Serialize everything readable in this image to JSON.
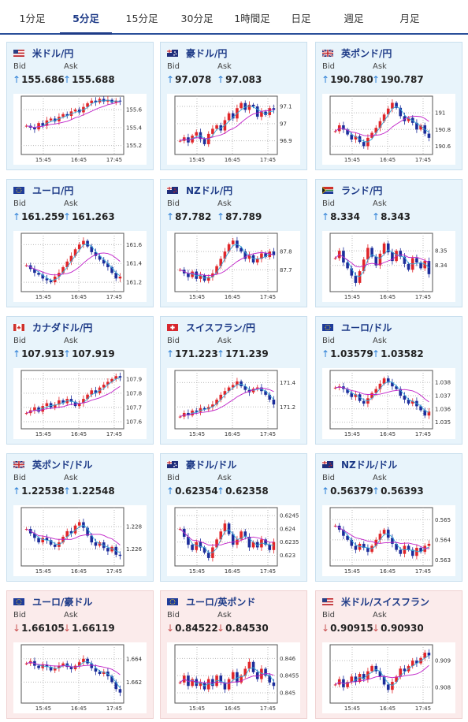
{
  "tabs": [
    {
      "label": "1分足",
      "active": false
    },
    {
      "label": "5分足",
      "active": true
    },
    {
      "label": "15分足",
      "active": false
    },
    {
      "label": "30分足",
      "active": false
    },
    {
      "label": "1時間足",
      "active": false
    },
    {
      "label": "日足",
      "active": false
    },
    {
      "label": "週足",
      "active": false
    },
    {
      "label": "月足",
      "active": false
    }
  ],
  "labels": {
    "bid": "Bid",
    "ask": "Ask"
  },
  "xticks": [
    "15:45",
    "16:45",
    "17:45"
  ],
  "cards": [
    {
      "pair": "米ドル/円",
      "flag": "us-flag-icon",
      "direction": "up",
      "bid": "155.686",
      "ask": "155.688",
      "yticks": [
        "155.6",
        "155.4",
        "155.2"
      ],
      "yrange": [
        155.1,
        155.75
      ],
      "open": 155.42,
      "series": [
        155.42,
        155.4,
        155.38,
        155.45,
        155.42,
        155.48,
        155.5,
        155.47,
        155.52,
        155.55,
        155.53,
        155.58,
        155.6,
        155.57,
        155.63,
        155.67,
        155.7,
        155.68,
        155.72,
        155.69,
        155.71,
        155.68,
        155.7,
        155.69
      ]
    },
    {
      "pair": "豪ドル/円",
      "flag": "au-flag-icon",
      "direction": "up",
      "bid": "97.078",
      "ask": "97.083",
      "yticks": [
        "97.1",
        "97",
        "96.9"
      ],
      "yrange": [
        96.82,
        97.16
      ],
      "open": 96.9,
      "series": [
        96.9,
        96.92,
        96.89,
        96.93,
        96.95,
        96.91,
        96.88,
        96.94,
        96.97,
        96.99,
        96.96,
        97.02,
        97.06,
        97.03,
        97.09,
        97.12,
        97.08,
        97.11,
        97.1,
        97.04,
        97.07,
        97.05,
        97.09,
        97.08
      ]
    },
    {
      "pair": "英ポンド/円",
      "flag": "gb-flag-icon",
      "direction": "up",
      "bid": "190.780",
      "ask": "190.787",
      "yticks": [
        "191",
        "190.8",
        "190.6"
      ],
      "yrange": [
        190.5,
        191.2
      ],
      "open": 190.78,
      "series": [
        190.78,
        190.85,
        190.8,
        190.74,
        190.68,
        190.72,
        190.65,
        190.6,
        190.7,
        190.76,
        190.82,
        190.9,
        190.98,
        191.05,
        191.12,
        191.06,
        190.96,
        190.9,
        190.94,
        190.88,
        190.8,
        190.85,
        190.75,
        190.7
      ]
    },
    {
      "pair": "ユーロ/円",
      "flag": "eu-flag-icon",
      "direction": "up",
      "bid": "161.259",
      "ask": "161.263",
      "yticks": [
        "161.6",
        "161.4",
        "161.2"
      ],
      "yrange": [
        161.1,
        161.72
      ],
      "open": 161.38,
      "series": [
        161.38,
        161.34,
        161.3,
        161.28,
        161.24,
        161.22,
        161.2,
        161.26,
        161.3,
        161.36,
        161.42,
        161.48,
        161.55,
        161.6,
        161.64,
        161.58,
        161.52,
        161.48,
        161.44,
        161.4,
        161.36,
        161.3,
        161.24,
        161.26
      ]
    },
    {
      "pair": "NZドル/円",
      "flag": "nz-flag-icon",
      "direction": "up",
      "bid": "87.782",
      "ask": "87.789",
      "yticks": [
        "87.8",
        "87.7"
      ],
      "yrange": [
        87.58,
        87.9
      ],
      "open": 87.7,
      "series": [
        87.7,
        87.68,
        87.66,
        87.69,
        87.65,
        87.67,
        87.64,
        87.66,
        87.68,
        87.72,
        87.76,
        87.8,
        87.84,
        87.86,
        87.82,
        87.8,
        87.76,
        87.78,
        87.74,
        87.76,
        87.79,
        87.77,
        87.8,
        87.78
      ]
    },
    {
      "pair": "ランド/円",
      "flag": "za-flag-icon",
      "direction": "up",
      "bid": "8.334",
      "ask": "8.343",
      "yticks": [
        "8.35",
        "8.34"
      ],
      "yrange": [
        8.322,
        8.362
      ],
      "open": 8.345,
      "series": [
        8.345,
        8.35,
        8.342,
        8.338,
        8.333,
        8.328,
        8.336,
        8.344,
        8.352,
        8.346,
        8.34,
        8.348,
        8.355,
        8.349,
        8.343,
        8.35,
        8.346,
        8.341,
        8.337,
        8.345,
        8.342,
        8.338,
        8.343,
        8.334
      ]
    },
    {
      "pair": "カナダドル/円",
      "flag": "ca-flag-icon",
      "direction": "up",
      "bid": "107.913",
      "ask": "107.919",
      "yticks": [
        "107.9",
        "107.8",
        "107.7",
        "107.6"
      ],
      "yrange": [
        107.55,
        107.96
      ],
      "open": 107.66,
      "series": [
        107.66,
        107.68,
        107.7,
        107.67,
        107.71,
        107.73,
        107.7,
        107.72,
        107.75,
        107.73,
        107.76,
        107.74,
        107.71,
        107.73,
        107.76,
        107.79,
        107.82,
        107.8,
        107.84,
        107.86,
        107.88,
        107.9,
        107.92,
        107.91
      ]
    },
    {
      "pair": "スイスフラン/円",
      "flag": "ch-flag-icon",
      "direction": "up",
      "bid": "171.223",
      "ask": "171.239",
      "yticks": [
        "171.4",
        "171.2"
      ],
      "yrange": [
        171.02,
        171.5
      ],
      "open": 171.12,
      "series": [
        171.12,
        171.15,
        171.13,
        171.17,
        171.16,
        171.19,
        171.18,
        171.2,
        171.22,
        171.26,
        171.3,
        171.33,
        171.36,
        171.38,
        171.41,
        171.37,
        171.34,
        171.32,
        171.35,
        171.36,
        171.33,
        171.3,
        171.26,
        171.22
      ]
    },
    {
      "pair": "ユーロ/ドル",
      "flag": "eu-flag-icon",
      "direction": "up",
      "bid": "1.03579",
      "ask": "1.03582",
      "yticks": [
        "1.038",
        "1.037",
        "1.036",
        "1.035"
      ],
      "yrange": [
        1.0345,
        1.0389
      ],
      "open": 1.0376,
      "series": [
        1.0376,
        1.0377,
        1.0375,
        1.0372,
        1.0369,
        1.0371,
        1.0366,
        1.0364,
        1.0368,
        1.0372,
        1.0375,
        1.0379,
        1.0383,
        1.038,
        1.0377,
        1.0375,
        1.037,
        1.0367,
        1.0364,
        1.0366,
        1.0362,
        1.0359,
        1.0355,
        1.0358
      ]
    },
    {
      "pair": "英ポンド/ドル",
      "flag": "gb-flag-icon",
      "direction": "up",
      "bid": "1.22538",
      "ask": "1.22548",
      "yticks": [
        "1.228",
        "1.226"
      ],
      "yrange": [
        1.2245,
        1.2297
      ],
      "open": 1.2278,
      "series": [
        1.2278,
        1.2274,
        1.227,
        1.2266,
        1.227,
        1.2268,
        1.2264,
        1.2262,
        1.2266,
        1.2271,
        1.2276,
        1.2274,
        1.2281,
        1.2284,
        1.2279,
        1.2272,
        1.2266,
        1.2263,
        1.2266,
        1.2261,
        1.2258,
        1.2262,
        1.2255,
        1.2254
      ]
    },
    {
      "pair": "豪ドル/ドル",
      "flag": "au-flag-icon",
      "direction": "up",
      "bid": "0.62354",
      "ask": "0.62358",
      "yticks": [
        "0.6245",
        "0.624",
        "0.6235",
        "0.623"
      ],
      "yrange": [
        0.6226,
        0.6248
      ],
      "open": 0.624,
      "series": [
        0.624,
        0.6237,
        0.6234,
        0.6232,
        0.6235,
        0.6233,
        0.6231,
        0.6229,
        0.6233,
        0.6236,
        0.6239,
        0.6242,
        0.6238,
        0.6234,
        0.6236,
        0.6239,
        0.6237,
        0.6233,
        0.6235,
        0.6233,
        0.6236,
        0.6234,
        0.6232,
        0.6235
      ]
    },
    {
      "pair": "NZドル/ドル",
      "flag": "nz-flag-icon",
      "direction": "up",
      "bid": "0.56379",
      "ask": "0.56393",
      "yticks": [
        "0.565",
        "0.564",
        "0.563"
      ],
      "yrange": [
        0.5627,
        0.5656
      ],
      "open": 0.5647,
      "series": [
        0.5647,
        0.5645,
        0.5642,
        0.564,
        0.5637,
        0.5635,
        0.5638,
        0.5636,
        0.5634,
        0.5637,
        0.564,
        0.5643,
        0.5645,
        0.5641,
        0.5638,
        0.5635,
        0.5633,
        0.5637,
        0.5635,
        0.5632,
        0.5636,
        0.5634,
        0.5637,
        0.5638
      ]
    },
    {
      "pair": "ユーロ/豪ドル",
      "flag": "eu-flag-icon",
      "direction": "down",
      "bid": "1.66105",
      "ask": "1.66119",
      "yticks": [
        "1.664",
        "1.662"
      ],
      "yrange": [
        1.6602,
        1.6652
      ],
      "open": 1.6636,
      "series": [
        1.6636,
        1.6638,
        1.6634,
        1.6632,
        1.6635,
        1.6633,
        1.663,
        1.6632,
        1.6634,
        1.6636,
        1.6633,
        1.6631,
        1.6634,
        1.6637,
        1.664,
        1.6636,
        1.6632,
        1.6629,
        1.6627,
        1.6629,
        1.6625,
        1.662,
        1.6614,
        1.6611
      ]
    },
    {
      "pair": "ユーロ/英ポンド",
      "flag": "eu-flag-icon",
      "direction": "down",
      "bid": "0.84522",
      "ask": "0.84530",
      "yticks": [
        "0.846",
        "0.8455",
        "0.845"
      ],
      "yrange": [
        0.8447,
        0.8464
      ],
      "open": 0.8453,
      "series": [
        0.8453,
        0.8455,
        0.8452,
        0.8454,
        0.8452,
        0.8453,
        0.8451,
        0.8454,
        0.8452,
        0.8455,
        0.8453,
        0.8451,
        0.8454,
        0.8456,
        0.8453,
        0.8455,
        0.8457,
        0.8459,
        0.8456,
        0.8454,
        0.8457,
        0.8455,
        0.8453,
        0.8452
      ]
    },
    {
      "pair": "米ドル/スイスフラン",
      "flag": "us-flag-icon",
      "direction": "down",
      "bid": "0.90915",
      "ask": "0.90930",
      "yticks": [
        "0.909",
        "0.908"
      ],
      "yrange": [
        0.9074,
        0.9096
      ],
      "open": 0.9081,
      "series": [
        0.9081,
        0.9083,
        0.908,
        0.9082,
        0.9084,
        0.9082,
        0.9085,
        0.9083,
        0.9086,
        0.9088,
        0.9086,
        0.9084,
        0.9081,
        0.9079,
        0.9082,
        0.9084,
        0.9087,
        0.9086,
        0.9088,
        0.909,
        0.9089,
        0.9091,
        0.9093,
        0.9092
      ]
    }
  ]
}
